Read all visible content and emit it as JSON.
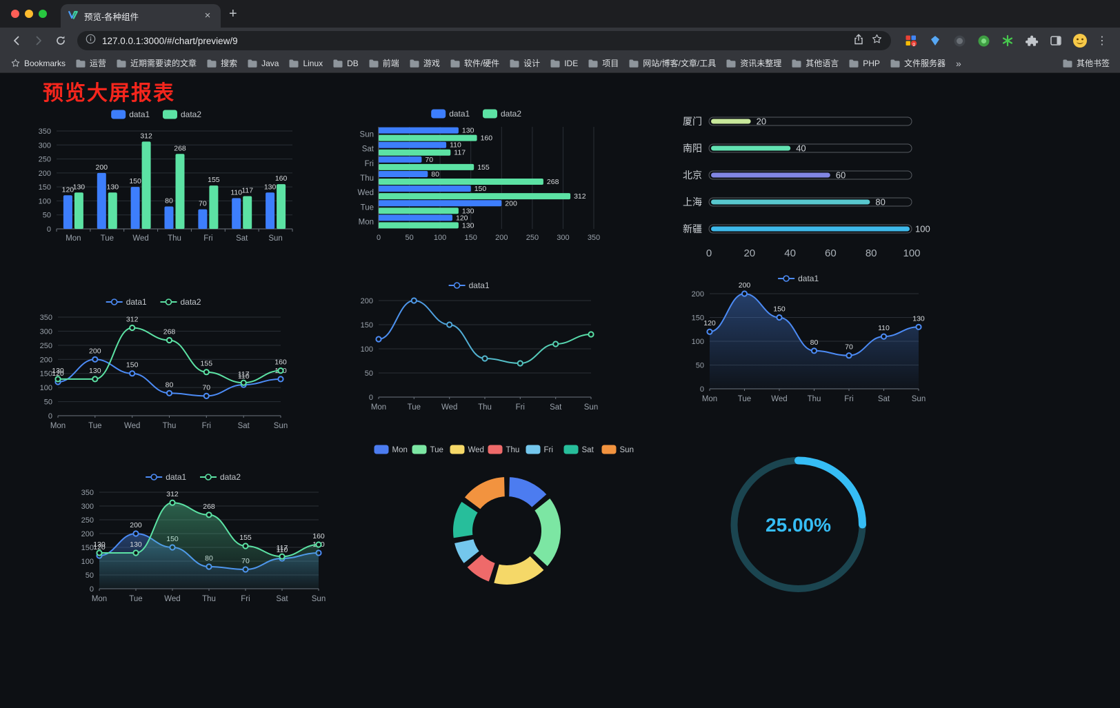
{
  "browser": {
    "tab_title": "预览-各种组件",
    "url": "127.0.0.1:3000/#/chart/preview/9",
    "bookmarks_label": "Bookmarks",
    "bookmark_folders": [
      "运营",
      "近期需要读的文章",
      "搜索",
      "Java",
      "Linux",
      "DB",
      "前端",
      "游戏",
      "软件/硬件",
      "设计",
      "IDE",
      "项目",
      "网站/博客/文章/工具",
      "资讯未整理",
      "其他语言",
      "PHP",
      "文件服务器"
    ],
    "bookmarks_overflow": "»",
    "other_bookmarks": "其他书签"
  },
  "icons": {
    "back": "←",
    "forward": "→",
    "new_tab": "+",
    "tab_close": "×",
    "menu": "⋮",
    "ext_asterisk": "*"
  },
  "page": {
    "title": "预览大屏报表",
    "title_color": "#f5261d"
  },
  "theme": {
    "background": "#0d1014",
    "axis_label": "#9aa2ab",
    "grid_line": "#2a2f36",
    "axis_line": "#6e7680",
    "value_label": "#d8dbde",
    "legend_text": "#c2c7cc"
  },
  "chart_data": [
    {
      "id": "bar-grouped",
      "type": "bar",
      "categories": [
        "Mon",
        "Tue",
        "Wed",
        "Thu",
        "Fri",
        "Sat",
        "Sun"
      ],
      "series": [
        {
          "name": "data1",
          "color": "#3d7efc",
          "values": [
            120,
            200,
            150,
            80,
            70,
            110,
            130
          ]
        },
        {
          "name": "data2",
          "color": "#5ce2a4",
          "values": [
            130,
            130,
            312,
            268,
            155,
            117,
            160
          ]
        }
      ],
      "ylim": [
        0,
        350
      ],
      "yticks": [
        0,
        50,
        100,
        150,
        200,
        250,
        300,
        350
      ],
      "legend_position": "top",
      "value_labels": true,
      "grid": true
    },
    {
      "id": "bar-horizontal",
      "type": "hbar",
      "categories": [
        "Mon",
        "Tue",
        "Wed",
        "Thu",
        "Fri",
        "Sat",
        "Sun"
      ],
      "series": [
        {
          "name": "data1",
          "color": "#3d7efc",
          "values": [
            120,
            200,
            150,
            80,
            70,
            110,
            130
          ]
        },
        {
          "name": "data2",
          "color": "#5ce2a4",
          "values": [
            130,
            130,
            312,
            268,
            155,
            117,
            160
          ]
        }
      ],
      "xlim": [
        0,
        350
      ],
      "xticks": [
        0,
        50,
        100,
        150,
        200,
        250,
        300,
        350
      ],
      "legend_position": "top",
      "value_labels": true,
      "grid": true
    },
    {
      "id": "progress-list",
      "type": "progress",
      "items": [
        {
          "label": "厦门",
          "value": 20,
          "color": "#c8e89b"
        },
        {
          "label": "南阳",
          "value": 40,
          "color": "#62e2b2"
        },
        {
          "label": "北京",
          "value": 60,
          "color": "#8186e3"
        },
        {
          "label": "上海",
          "value": 80,
          "color": "#58c7ce"
        },
        {
          "label": "新疆",
          "value": 100,
          "color": "#3eb9ea"
        }
      ],
      "xlim": [
        0,
        100
      ],
      "xticks": [
        0,
        20,
        40,
        60,
        80,
        100
      ]
    },
    {
      "id": "line-dual",
      "type": "line",
      "categories": [
        "Mon",
        "Tue",
        "Wed",
        "Thu",
        "Fri",
        "Sat",
        "Sun"
      ],
      "series": [
        {
          "name": "data1",
          "color": "#4c8bf5",
          "values": [
            120,
            200,
            150,
            80,
            70,
            110,
            130
          ]
        },
        {
          "name": "data2",
          "color": "#5ce2a4",
          "values": [
            130,
            130,
            312,
            268,
            155,
            117,
            160
          ]
        }
      ],
      "ylim": [
        0,
        350
      ],
      "yticks": [
        0,
        50,
        100,
        150,
        200,
        250,
        300,
        350
      ],
      "legend_position": "top",
      "value_labels": true,
      "smooth": true,
      "grid": true
    },
    {
      "id": "line-single",
      "type": "line",
      "categories": [
        "Mon",
        "Tue",
        "Wed",
        "Thu",
        "Fri",
        "Sat",
        "Sun"
      ],
      "series": [
        {
          "name": "data1",
          "color": "#4c8bf5",
          "color_end": "#58e0a5",
          "values": [
            120,
            200,
            150,
            80,
            70,
            110,
            130
          ]
        }
      ],
      "ylim": [
        0,
        200
      ],
      "yticks": [
        0,
        50,
        100,
        150,
        200
      ],
      "legend_position": "top",
      "value_labels": false,
      "smooth": true,
      "gradient_stroke": true,
      "grid": true
    },
    {
      "id": "area-single",
      "type": "line",
      "categories": [
        "Mon",
        "Tue",
        "Wed",
        "Thu",
        "Fri",
        "Sat",
        "Sun"
      ],
      "series": [
        {
          "name": "data1",
          "color": "#4c8bf5",
          "values": [
            120,
            200,
            150,
            80,
            70,
            110,
            130
          ]
        }
      ],
      "ylim": [
        0,
        200
      ],
      "yticks": [
        0,
        50,
        100,
        150,
        200
      ],
      "legend_position": "top",
      "value_labels": true,
      "smooth": true,
      "area": true,
      "grid": true
    },
    {
      "id": "area-dual",
      "type": "line",
      "categories": [
        "Mon",
        "Tue",
        "Wed",
        "Thu",
        "Fri",
        "Sat",
        "Sun"
      ],
      "series": [
        {
          "name": "data1",
          "color": "#4c8bf5",
          "values": [
            120,
            200,
            150,
            80,
            70,
            110,
            130
          ]
        },
        {
          "name": "data2",
          "color": "#5ce2a4",
          "values": [
            130,
            130,
            312,
            268,
            155,
            117,
            160
          ]
        }
      ],
      "ylim": [
        0,
        350
      ],
      "yticks": [
        0,
        50,
        100,
        150,
        200,
        250,
        300,
        350
      ],
      "legend_position": "top",
      "value_labels": true,
      "smooth": true,
      "area": true,
      "grid": true
    },
    {
      "id": "donut",
      "type": "donut",
      "categories": [
        "Mon",
        "Tue",
        "Wed",
        "Thu",
        "Fri",
        "Sat",
        "Sun"
      ],
      "values": [
        120,
        200,
        150,
        80,
        70,
        110,
        130
      ],
      "colors": [
        "#4c7cf0",
        "#7ce6a3",
        "#f5d868",
        "#ee6a6a",
        "#74c7ed",
        "#27be9b",
        "#f2933f"
      ],
      "legend_position": "top"
    },
    {
      "id": "gauge",
      "type": "gauge",
      "value": 25,
      "label": "25.00%",
      "color": "#36bdf5",
      "track_color": "#1b4550"
    }
  ]
}
